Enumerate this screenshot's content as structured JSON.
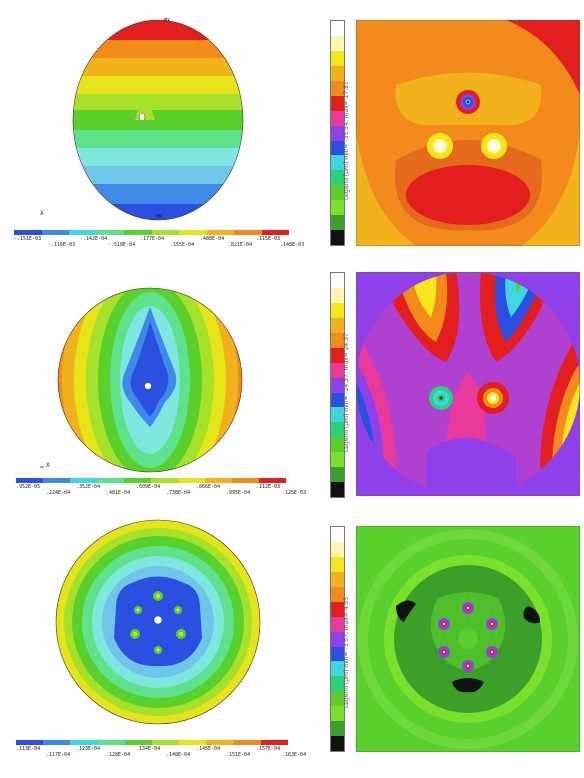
{
  "rows": [
    {
      "left_top_mark": "MX",
      "left_bottom_mark": "MN",
      "legend_top": [
        "-.151E-03",
        "-.142E-04",
        ".177E-04",
        ".488E-04",
        ".115E-03"
      ],
      "legend_bottom": [
        "-.116E-03",
        "-.518E-04",
        ".155E-04",
        ".821E-04",
        ".148E-03"
      ],
      "right_legend": "Legend [µm] min= -35.54, max= 17.81"
    },
    {
      "legend_top": [
        ".952E-05",
        ".352E-04",
        ".609E-04",
        ".866E-04",
        ".112E-03"
      ],
      "legend_bottom": [
        ".224E-04",
        ".481E-04",
        ".738E-04",
        ".995E-04",
        ".125E-03"
      ],
      "right_legend": "Legend [µm] min= -24.37, max= 24.37"
    },
    {
      "legend_top": [
        ".113E-04",
        ".123E-04",
        ".134E-04",
        ".145E-04",
        ".157E-04"
      ],
      "legend_bottom": [
        ".117E-04",
        ".128E-04",
        ".140E-04",
        ".151E-04",
        ".163E-04"
      ],
      "right_legend": "Legend [µm] min= -3.57, max= 4.55"
    }
  ],
  "axis_label": "X",
  "colors": {
    "red": "#e31e1e",
    "orange": "#f28a1c",
    "yellow": "#f5e71a",
    "green": "#5ad02c",
    "cyan": "#3fd6e0",
    "blue": "#2b4fe0",
    "purple": "#9040e8"
  }
}
